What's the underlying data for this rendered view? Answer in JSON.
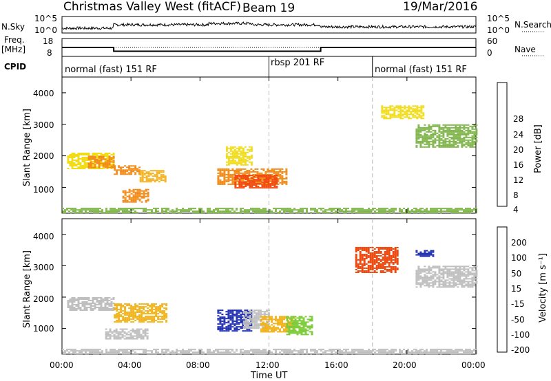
{
  "header": {
    "station": "Christmas Valley West (fitACF)",
    "beam": "Beam 19",
    "date": "19/Mar/2016"
  },
  "side_labels": {
    "nsky": "N.Sky",
    "nsky_hi": "10^5",
    "nsky_lo": "10^0",
    "nsearch": "N.Search",
    "nsearch_hi": "10^5",
    "nsearch_lo": "10^0",
    "freq": "Freq.",
    "freq_unit": "[MHz]",
    "freq_hi": "18",
    "freq_lo": "8",
    "nave": "Nave",
    "nave_hi": "60",
    "nave_lo": "0",
    "cpid": "CPID"
  },
  "cpid_segments": [
    {
      "label": "normal (fast) 151 RF",
      "start_hr": 0
    },
    {
      "label": "rbsp 201 RF",
      "start_hr": 12
    },
    {
      "label": "normal (fast) 151 RF",
      "start_hr": 18
    }
  ],
  "panels": {
    "power": {
      "ylabel": "Slant Range [km]",
      "cbar_label": "Power [dB]",
      "cbar_ticks": [
        "28",
        "24",
        "20",
        "16",
        "12",
        "8",
        "4"
      ],
      "cbar_colors": [
        "#ee1111",
        "#f04a10",
        "#f28a18",
        "#f5b21e",
        "#f2dc18",
        "#7fb54a",
        "#2f8f6a",
        "#1f5f9a",
        "#1515c8"
      ]
    },
    "velocity": {
      "ylabel": "Slant Range [km]",
      "cbar_label": "Velocity [m s⁻¹]",
      "cbar_ticks": [
        "200",
        "100",
        "50",
        "15",
        "-15",
        "-50",
        "-100",
        "-200"
      ],
      "cbar_colors": [
        "#1f2fb0",
        "#2f7aa0",
        "#2f8f4f",
        "#7ccc3a",
        "#bfbfbf",
        "#f2b31c",
        "#f58a18",
        "#f04a10",
        "#e81010"
      ]
    }
  },
  "x_ticks": [
    "00:00",
    "04:00",
    "08:00",
    "12:00",
    "16:00",
    "20:00",
    "00:00"
  ],
  "xlabel": "Time UT",
  "y_ticks": [
    "1000",
    "2000",
    "3000",
    "4000"
  ],
  "chart_data": {
    "type": "heatmap",
    "title": "Christmas Valley West (fitACF)",
    "xlabel": "Time UT",
    "ylabel": "Slant Range [km]",
    "xlim_hours": [
      0,
      24
    ],
    "ylim_km": [
      180,
      4500
    ],
    "x_tick_hours": [
      0,
      4,
      8,
      12,
      16,
      20,
      24
    ],
    "y_tick_km": [
      1000,
      2000,
      3000,
      4000
    ],
    "mode_change_hours": [
      12,
      18
    ],
    "frequency_mhz": [
      {
        "start_hr": 0,
        "end_hr": 3,
        "value": 13
      },
      {
        "start_hr": 3,
        "end_hr": 15,
        "value": 10.5
      },
      {
        "start_hr": 15,
        "end_hr": 24,
        "value": 13
      }
    ],
    "power_regions_db": [
      {
        "t0": 0.3,
        "t1": 3.0,
        "r0": 1600,
        "r1": 2100,
        "value": 14
      },
      {
        "t0": 1.5,
        "t1": 3.0,
        "r0": 1650,
        "r1": 2000,
        "value": 22
      },
      {
        "t0": 3.0,
        "t1": 4.5,
        "r0": 1400,
        "r1": 1700,
        "value": 20
      },
      {
        "t0": 4.5,
        "t1": 6.0,
        "r0": 1200,
        "r1": 1550,
        "value": 18
      },
      {
        "t0": 3.5,
        "t1": 5.0,
        "r0": 550,
        "r1": 950,
        "value": 22
      },
      {
        "t0": 9.0,
        "t1": 13.0,
        "r0": 1100,
        "r1": 1600,
        "value": 20
      },
      {
        "t0": 9.5,
        "t1": 11.0,
        "r0": 1700,
        "r1": 2300,
        "value": 12
      },
      {
        "t0": 10.0,
        "t1": 12.5,
        "r0": 1000,
        "r1": 1400,
        "value": 26
      },
      {
        "t0": 18.5,
        "t1": 21.0,
        "r0": 3200,
        "r1": 3600,
        "value": 14
      },
      {
        "t0": 20.5,
        "t1": 24.0,
        "r0": 2300,
        "r1": 3000,
        "value": 8
      },
      {
        "t0": 0.0,
        "t1": 24.0,
        "r0": 200,
        "r1": 350,
        "value": 10
      }
    ],
    "velocity_regions_ms": [
      {
        "t0": 0.3,
        "t1": 3.0,
        "r0": 1600,
        "r1": 2000,
        "value": -15
      },
      {
        "t0": 3.0,
        "t1": 6.0,
        "r0": 1200,
        "r1": 1800,
        "value": -50
      },
      {
        "t0": 2.5,
        "t1": 5.0,
        "r0": 650,
        "r1": 1000,
        "value": 0
      },
      {
        "t0": 9.0,
        "t1": 11.0,
        "r0": 900,
        "r1": 1600,
        "value": 200
      },
      {
        "t0": 10.5,
        "t1": 12.0,
        "r0": 1000,
        "r1": 1600,
        "value": 0
      },
      {
        "t0": 11.5,
        "t1": 13.5,
        "r0": 900,
        "r1": 1400,
        "value": -50
      },
      {
        "t0": 13.0,
        "t1": 14.5,
        "r0": 800,
        "r1": 1400,
        "value": 30
      },
      {
        "t0": 17.0,
        "t1": 19.5,
        "r0": 2800,
        "r1": 3600,
        "value": -200
      },
      {
        "t0": 20.5,
        "t1": 21.5,
        "r0": 3300,
        "r1": 3500,
        "value": 200
      },
      {
        "t0": 20.5,
        "t1": 24.0,
        "r0": 2300,
        "r1": 3000,
        "value": 0
      },
      {
        "t0": 0.0,
        "t1": 24.0,
        "r0": 200,
        "r1": 350,
        "value": -15
      }
    ]
  }
}
